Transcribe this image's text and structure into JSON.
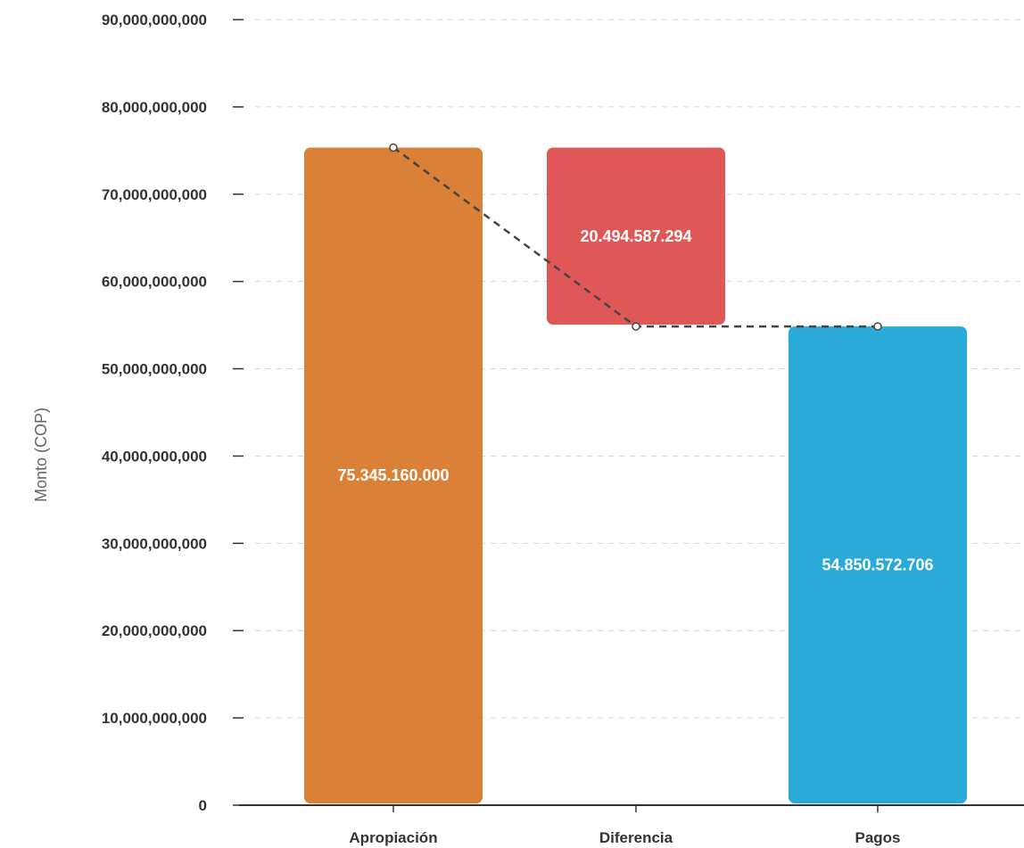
{
  "chart_data": {
    "type": "waterfall",
    "ylabel": "Monto (COP)",
    "ylim": [
      0,
      90000000000
    ],
    "yticks": [
      0,
      10000000000,
      20000000000,
      30000000000,
      40000000000,
      50000000000,
      60000000000,
      70000000000,
      80000000000,
      90000000000
    ],
    "ytick_labels": [
      "0",
      "10,000,000,000",
      "20,000,000,000",
      "30,000,000,000",
      "40,000,000,000",
      "50,000,000,000",
      "60,000,000,000",
      "70,000,000,000",
      "80,000,000,000",
      "90,000,000,000"
    ],
    "grid": true,
    "categories": [
      "Apropiación",
      "Diferencia",
      "Pagos"
    ],
    "bars": [
      {
        "category": "Apropiación",
        "start": 0,
        "end": 75345160000,
        "label": "75.345.160.000",
        "color": "#db8037"
      },
      {
        "category": "Diferencia",
        "start": 54850572706,
        "end": 75345160000,
        "label": "20.494.587.294",
        "color": "#e05757"
      },
      {
        "category": "Pagos",
        "start": 0,
        "end": 54850572706,
        "label": "54.850.572.706",
        "color": "#2aaad8"
      }
    ],
    "connector": {
      "style": "dashed",
      "color": "#444444"
    }
  }
}
